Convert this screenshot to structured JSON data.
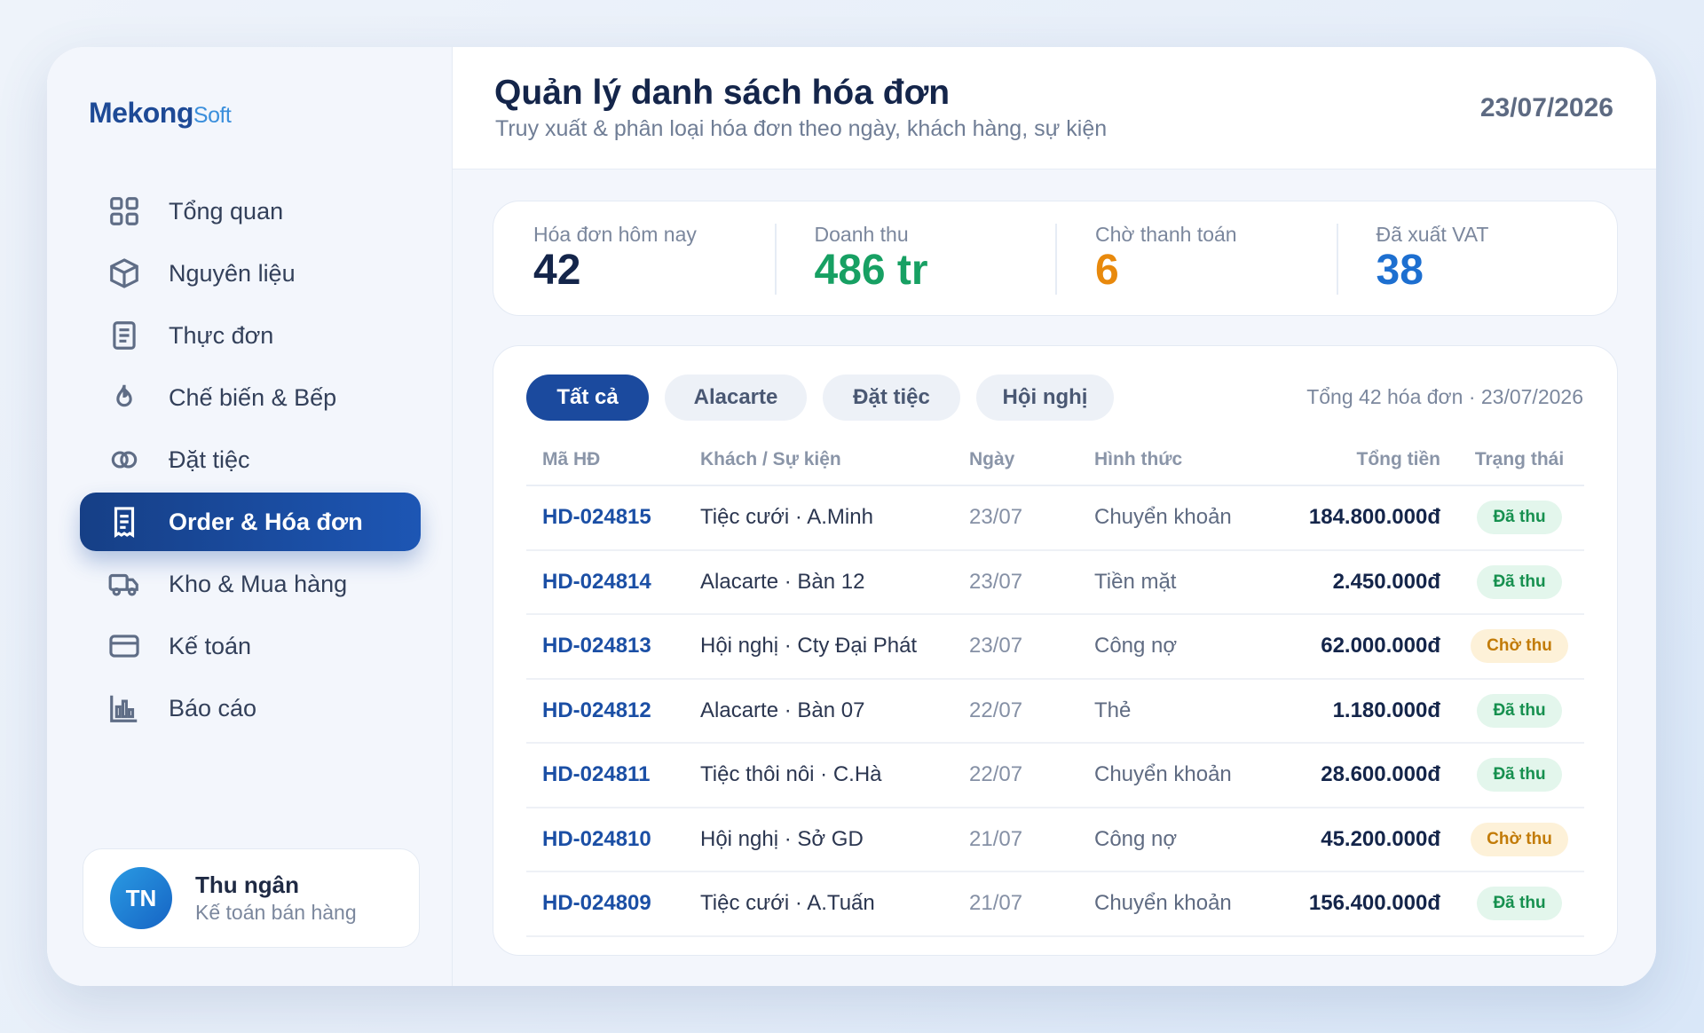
{
  "brand": {
    "name_main": "Mekong",
    "name_sub": "Soft"
  },
  "sidebar": {
    "items": [
      {
        "label": "Tổng quan",
        "icon": "grid-icon"
      },
      {
        "label": "Nguyên liệu",
        "icon": "box-icon"
      },
      {
        "label": "Thực đơn",
        "icon": "menu-doc-icon"
      },
      {
        "label": "Chế biến & Bếp",
        "icon": "flame-icon"
      },
      {
        "label": "Đặt tiệc",
        "icon": "rings-icon"
      },
      {
        "label": "Order & Hóa đơn",
        "icon": "receipt-icon",
        "active": true
      },
      {
        "label": "Kho & Mua hàng",
        "icon": "truck-icon"
      },
      {
        "label": "Kế toán",
        "icon": "card-icon"
      },
      {
        "label": "Báo cáo",
        "icon": "bar-chart-icon"
      }
    ]
  },
  "user": {
    "initials": "TN",
    "name": "Thu ngân",
    "role": "Kế toán bán hàng"
  },
  "header": {
    "title": "Quản lý danh sách hóa đơn",
    "subtitle": "Truy xuất & phân loại hóa đơn theo ngày, khách hàng, sự kiện",
    "date": "23/07/2026"
  },
  "stats": [
    {
      "label": "Hóa đơn hôm nay",
      "value": "42",
      "color": "#14254a"
    },
    {
      "label": "Doanh thu",
      "value": "486 tr",
      "color": "#17a063"
    },
    {
      "label": "Chờ thanh toán",
      "value": "6",
      "color": "#e8890c"
    },
    {
      "label": "Đã xuất VAT",
      "value": "38",
      "color": "#1d6fd0"
    }
  ],
  "tabs": [
    {
      "label": "Tất cả",
      "active": true
    },
    {
      "label": "Alacarte"
    },
    {
      "label": "Đặt tiệc"
    },
    {
      "label": "Hội nghị"
    }
  ],
  "summary": "Tổng 42 hóa đơn · 23/07/2026",
  "table": {
    "columns": [
      "Mã HĐ",
      "Khách / Sự kiện",
      "Ngày",
      "Hình thức",
      "Tổng tiền",
      "Trạng thái"
    ],
    "rows": [
      {
        "id": "HD-024815",
        "customer": "Tiệc cưới · A.Minh",
        "date": "23/07",
        "method": "Chuyển khoản",
        "total": "184.800.000đ",
        "status": "Đã thu",
        "paid": true
      },
      {
        "id": "HD-024814",
        "customer": "Alacarte · Bàn 12",
        "date": "23/07",
        "method": "Tiền mặt",
        "total": "2.450.000đ",
        "status": "Đã thu",
        "paid": true
      },
      {
        "id": "HD-024813",
        "customer": "Hội nghị · Cty Đại Phát",
        "date": "23/07",
        "method": "Công nợ",
        "total": "62.000.000đ",
        "status": "Chờ thu",
        "paid": false
      },
      {
        "id": "HD-024812",
        "customer": "Alacarte · Bàn 07",
        "date": "22/07",
        "method": "Thẻ",
        "total": "1.180.000đ",
        "status": "Đã thu",
        "paid": true
      },
      {
        "id": "HD-024811",
        "customer": "Tiệc thôi nôi · C.Hà",
        "date": "22/07",
        "method": "Chuyển khoản",
        "total": "28.600.000đ",
        "status": "Đã thu",
        "paid": true
      },
      {
        "id": "HD-024810",
        "customer": "Hội nghị · Sở GD",
        "date": "21/07",
        "method": "Công nợ",
        "total": "45.200.000đ",
        "status": "Chờ thu",
        "paid": false
      },
      {
        "id": "HD-024809",
        "customer": "Tiệc cưới · A.Tuấn",
        "date": "21/07",
        "method": "Chuyển khoản",
        "total": "156.400.000đ",
        "status": "Đã thu",
        "paid": true
      }
    ]
  }
}
